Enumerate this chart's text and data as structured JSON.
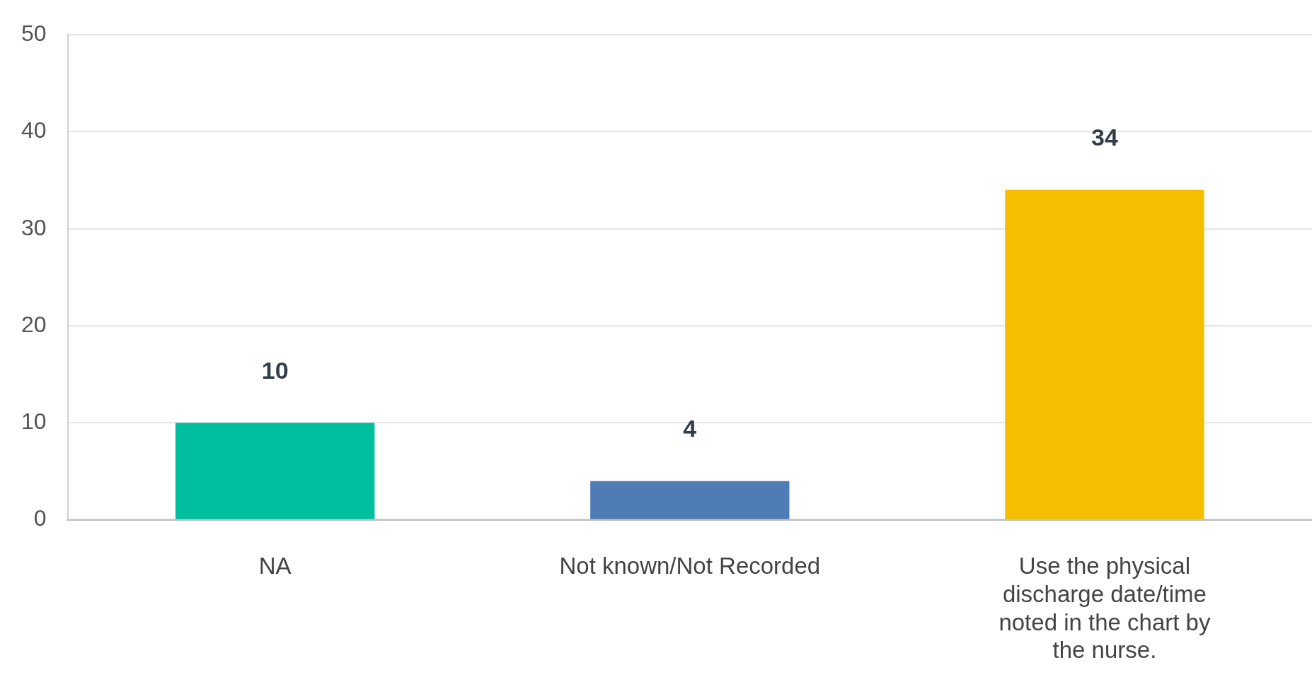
{
  "chart_data": {
    "type": "bar",
    "categories": [
      "NA",
      "Not known/Not Recorded",
      "Use the physical discharge date/time noted in the chart by the nurse."
    ],
    "values": [
      10,
      4,
      34
    ],
    "colors": [
      "#00bf9f",
      "#507cb6",
      "#f6be00"
    ],
    "ylim": [
      0,
      50
    ],
    "yticks": [
      0,
      10,
      20,
      30,
      40,
      50
    ],
    "grid": "y",
    "data_labels": true,
    "legend": false
  }
}
